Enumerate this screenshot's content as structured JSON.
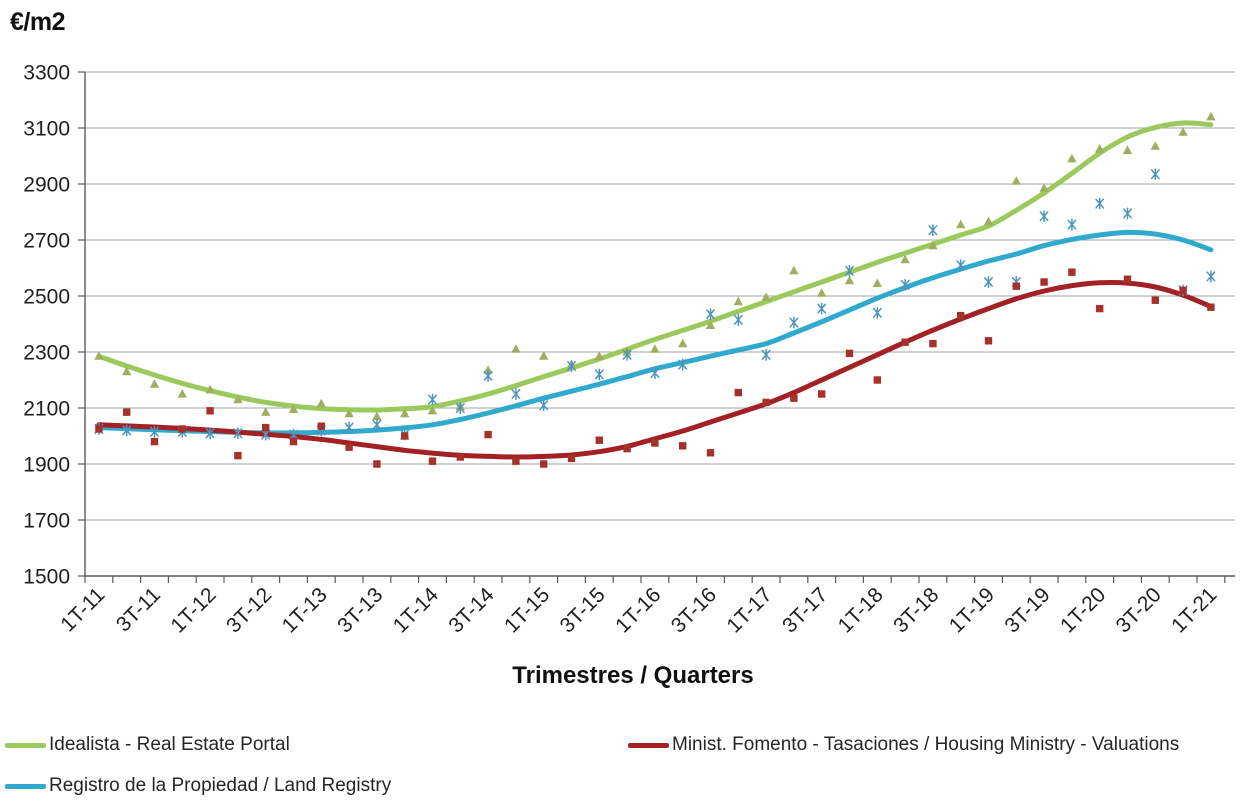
{
  "chart_data": {
    "type": "scatter",
    "title": "",
    "xlabel": "Trimestres / Quarters",
    "ylabel": "€/m2",
    "ylim": [
      1500,
      3300
    ],
    "y_ticks": [
      1500,
      1700,
      1900,
      2100,
      2300,
      2500,
      2700,
      2900,
      3100,
      3300
    ],
    "x_labels_shown_every": 2,
    "grid": "horizontal",
    "legend_position": "bottom",
    "categories": [
      "1T-11",
      "2T-11",
      "3T-11",
      "4T-11",
      "1T-12",
      "2T-12",
      "3T-12",
      "4T-12",
      "1T-13",
      "2T-13",
      "3T-13",
      "4T-13",
      "1T-14",
      "2T-14",
      "3T-14",
      "4T-14",
      "1T-15",
      "2T-15",
      "3T-15",
      "4T-15",
      "1T-16",
      "2T-16",
      "3T-16",
      "4T-16",
      "1T-17",
      "2T-17",
      "3T-17",
      "4T-17",
      "1T-18",
      "2T-18",
      "3T-18",
      "4T-18",
      "1T-19",
      "2T-19",
      "3T-19",
      "4T-19",
      "1T-20",
      "2T-20",
      "3T-20",
      "4T-20",
      "1T-21"
    ],
    "series": [
      {
        "key": "idealista",
        "name": "Idealista - Real Estate Portal",
        "color": "#9CC95C",
        "marker": "triangle",
        "marker_color": "#9FAE63",
        "points": [
          2285,
          2230,
          2185,
          2150,
          2165,
          2130,
          2085,
          2095,
          2115,
          2080,
          2070,
          2080,
          2090,
          2105,
          2235,
          2310,
          2285,
          2255,
          2285,
          2300,
          2310,
          2330,
          2395,
          2480,
          2495,
          2590,
          2510,
          2555,
          2545,
          2630,
          2680,
          2755,
          2765,
          2910,
          2885,
          2990,
          3025,
          3020,
          3035,
          3085,
          3140
        ],
        "trend": [
          2285,
          2250,
          2218,
          2188,
          2162,
          2139,
          2120,
          2107,
          2098,
          2094,
          2093,
          2097,
          2105,
          2125,
          2150,
          2180,
          2212,
          2243,
          2275,
          2310,
          2345,
          2377,
          2410,
          2445,
          2480,
          2515,
          2550,
          2585,
          2620,
          2653,
          2685,
          2718,
          2750,
          2806,
          2868,
          2938,
          3010,
          3068,
          3102,
          3118,
          3112
        ]
      },
      {
        "key": "registro",
        "name": "Registro de la Propiedad / Land Registry",
        "color": "#2FA9CE",
        "marker": "asterisk",
        "marker_color": "#4E95BD",
        "points": [
          2025,
          2020,
          2015,
          2015,
          2010,
          2010,
          2005,
          2005,
          2020,
          2030,
          2040,
          2005,
          2130,
          2100,
          2215,
          2150,
          2110,
          2250,
          2220,
          2290,
          2225,
          2255,
          2435,
          2415,
          2290,
          2405,
          2455,
          2590,
          2440,
          2540,
          2735,
          2610,
          2550,
          2550,
          2785,
          2755,
          2830,
          2795,
          2935,
          2520,
          2570
        ],
        "trend": [
          2030,
          2026,
          2022,
          2019,
          2016,
          2013,
          2011,
          2011,
          2013,
          2016,
          2021,
          2029,
          2040,
          2059,
          2082,
          2108,
          2135,
          2160,
          2185,
          2212,
          2240,
          2262,
          2285,
          2307,
          2330,
          2368,
          2408,
          2450,
          2492,
          2530,
          2565,
          2596,
          2625,
          2650,
          2680,
          2702,
          2718,
          2727,
          2721,
          2700,
          2665
        ]
      },
      {
        "key": "fomento",
        "name": "Minist. Fomento - Tasaciones / Housing Ministry - Valuations",
        "color": "#A32125",
        "marker": "square",
        "marker_color": "#A5312B",
        "points": [
          2025,
          2085,
          1980,
          2025,
          2090,
          1930,
          2030,
          1980,
          2035,
          1960,
          1900,
          2000,
          1910,
          1925,
          2005,
          1910,
          1900,
          1920,
          1985,
          1955,
          1975,
          1965,
          1940,
          2155,
          2120,
          2135,
          2150,
          2295,
          2200,
          2335,
          2330,
          2430,
          2340,
          2535,
          2550,
          2585,
          2455,
          2560,
          2485,
          2520,
          2460
        ],
        "trend": [
          2040,
          2036,
          2032,
          2027,
          2021,
          2014,
          2006,
          1998,
          1988,
          1975,
          1962,
          1949,
          1939,
          1931,
          1927,
          1925,
          1927,
          1932,
          1944,
          1963,
          1990,
          2018,
          2050,
          2082,
          2115,
          2155,
          2200,
          2245,
          2290,
          2335,
          2378,
          2418,
          2455,
          2490,
          2518,
          2537,
          2547,
          2546,
          2532,
          2503,
          2462
        ]
      }
    ]
  },
  "legend": {
    "row1_left": "Idealista - Real Estate Portal",
    "row1_right": "Minist. Fomento - Tasaciones / Housing Ministry - Valuations",
    "row2_left": "Registro de la Propiedad / Land Registry"
  }
}
